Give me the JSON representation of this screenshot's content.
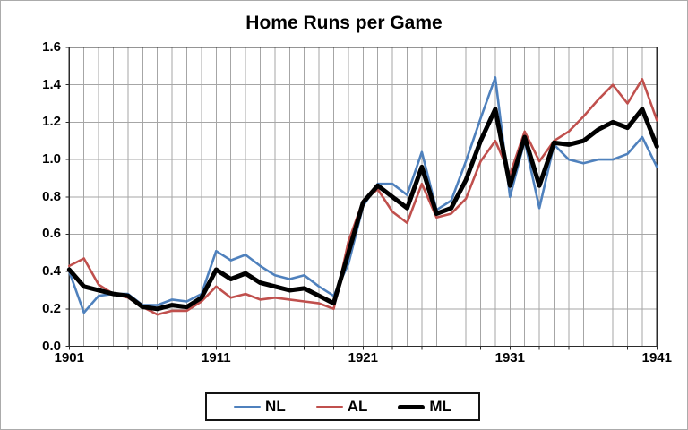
{
  "chart_data": {
    "type": "line",
    "title": "Home Runs per Game",
    "xlabel": "",
    "ylabel": "",
    "x_start": 1901,
    "x_end": 1941,
    "ylim": [
      0,
      1.6
    ],
    "y_tick_step": 0.2,
    "y_tick_labels": [
      "0.0",
      "0.2",
      "0.4",
      "0.6",
      "0.8",
      "1.0",
      "1.2",
      "1.4",
      "1.6"
    ],
    "x_tick_labels": [
      "1901",
      "1911",
      "1921",
      "1931",
      "1941"
    ],
    "grid": true,
    "legend_position": "bottom",
    "x": [
      1901,
      1902,
      1903,
      1904,
      1905,
      1906,
      1907,
      1908,
      1909,
      1910,
      1911,
      1912,
      1913,
      1914,
      1915,
      1916,
      1917,
      1918,
      1919,
      1920,
      1921,
      1922,
      1923,
      1924,
      1925,
      1926,
      1927,
      1928,
      1929,
      1930,
      1931,
      1932,
      1933,
      1934,
      1935,
      1936,
      1937,
      1938,
      1939,
      1940,
      1941
    ],
    "series": [
      {
        "name": "NL",
        "color": "#4F81BD",
        "line_width": 2.6,
        "values": [
          0.4,
          0.18,
          0.27,
          0.28,
          0.28,
          0.22,
          0.22,
          0.25,
          0.24,
          0.28,
          0.51,
          0.46,
          0.49,
          0.43,
          0.38,
          0.36,
          0.38,
          0.32,
          0.27,
          0.44,
          0.75,
          0.87,
          0.87,
          0.81,
          1.04,
          0.73,
          0.78,
          0.99,
          1.22,
          1.44,
          0.8,
          1.1,
          0.74,
          1.08,
          1.0,
          0.98,
          1.0,
          1.0,
          1.03,
          1.12,
          0.96
        ]
      },
      {
        "name": "AL",
        "color": "#C0504D",
        "line_width": 2.6,
        "values": [
          0.43,
          0.47,
          0.33,
          0.28,
          0.26,
          0.21,
          0.17,
          0.19,
          0.19,
          0.24,
          0.32,
          0.26,
          0.28,
          0.25,
          0.26,
          0.25,
          0.24,
          0.23,
          0.2,
          0.56,
          0.78,
          0.84,
          0.72,
          0.66,
          0.87,
          0.69,
          0.71,
          0.79,
          0.99,
          1.1,
          0.92,
          1.15,
          0.99,
          1.1,
          1.15,
          1.23,
          1.32,
          1.4,
          1.3,
          1.43,
          1.21
        ]
      },
      {
        "name": "ML",
        "color": "#000000",
        "line_width": 5,
        "values": [
          0.41,
          0.32,
          0.3,
          0.28,
          0.27,
          0.21,
          0.2,
          0.22,
          0.21,
          0.26,
          0.41,
          0.36,
          0.39,
          0.34,
          0.32,
          0.3,
          0.31,
          0.27,
          0.23,
          0.5,
          0.77,
          0.86,
          0.8,
          0.74,
          0.96,
          0.71,
          0.74,
          0.89,
          1.1,
          1.27,
          0.86,
          1.12,
          0.86,
          1.09,
          1.08,
          1.1,
          1.16,
          1.2,
          1.17,
          1.27,
          1.07
        ]
      }
    ]
  },
  "style": {
    "gridline_color": "#A6A6A6",
    "plot_border_color": "#2B2B2B",
    "background_color": "#FFFFFF",
    "frame_color": "#ABABAB",
    "text_color": "#000000"
  }
}
